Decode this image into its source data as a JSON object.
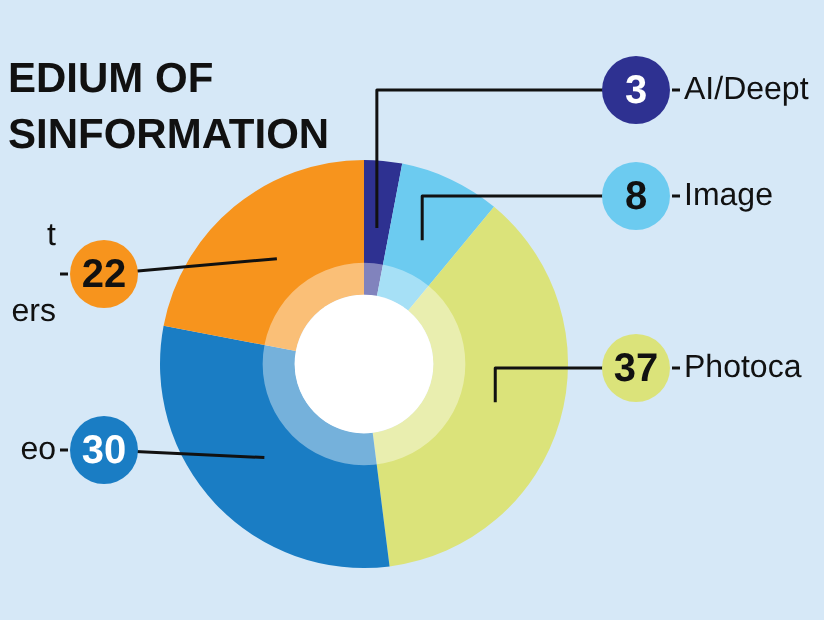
{
  "chart_data": {
    "type": "donut",
    "title": "EDIUM OF\nSINFORMATION",
    "categories": [
      "AI/Deept",
      "Image",
      "Photoca",
      "eo",
      "t\ners"
    ],
    "values": [
      3,
      8,
      37,
      30,
      22
    ],
    "colors": [
      "#2e3191",
      "#6ccbf0",
      "#dbe37a",
      "#1a7dc4",
      "#f7941d"
    ],
    "data_labels": true,
    "legend": "right"
  }
}
